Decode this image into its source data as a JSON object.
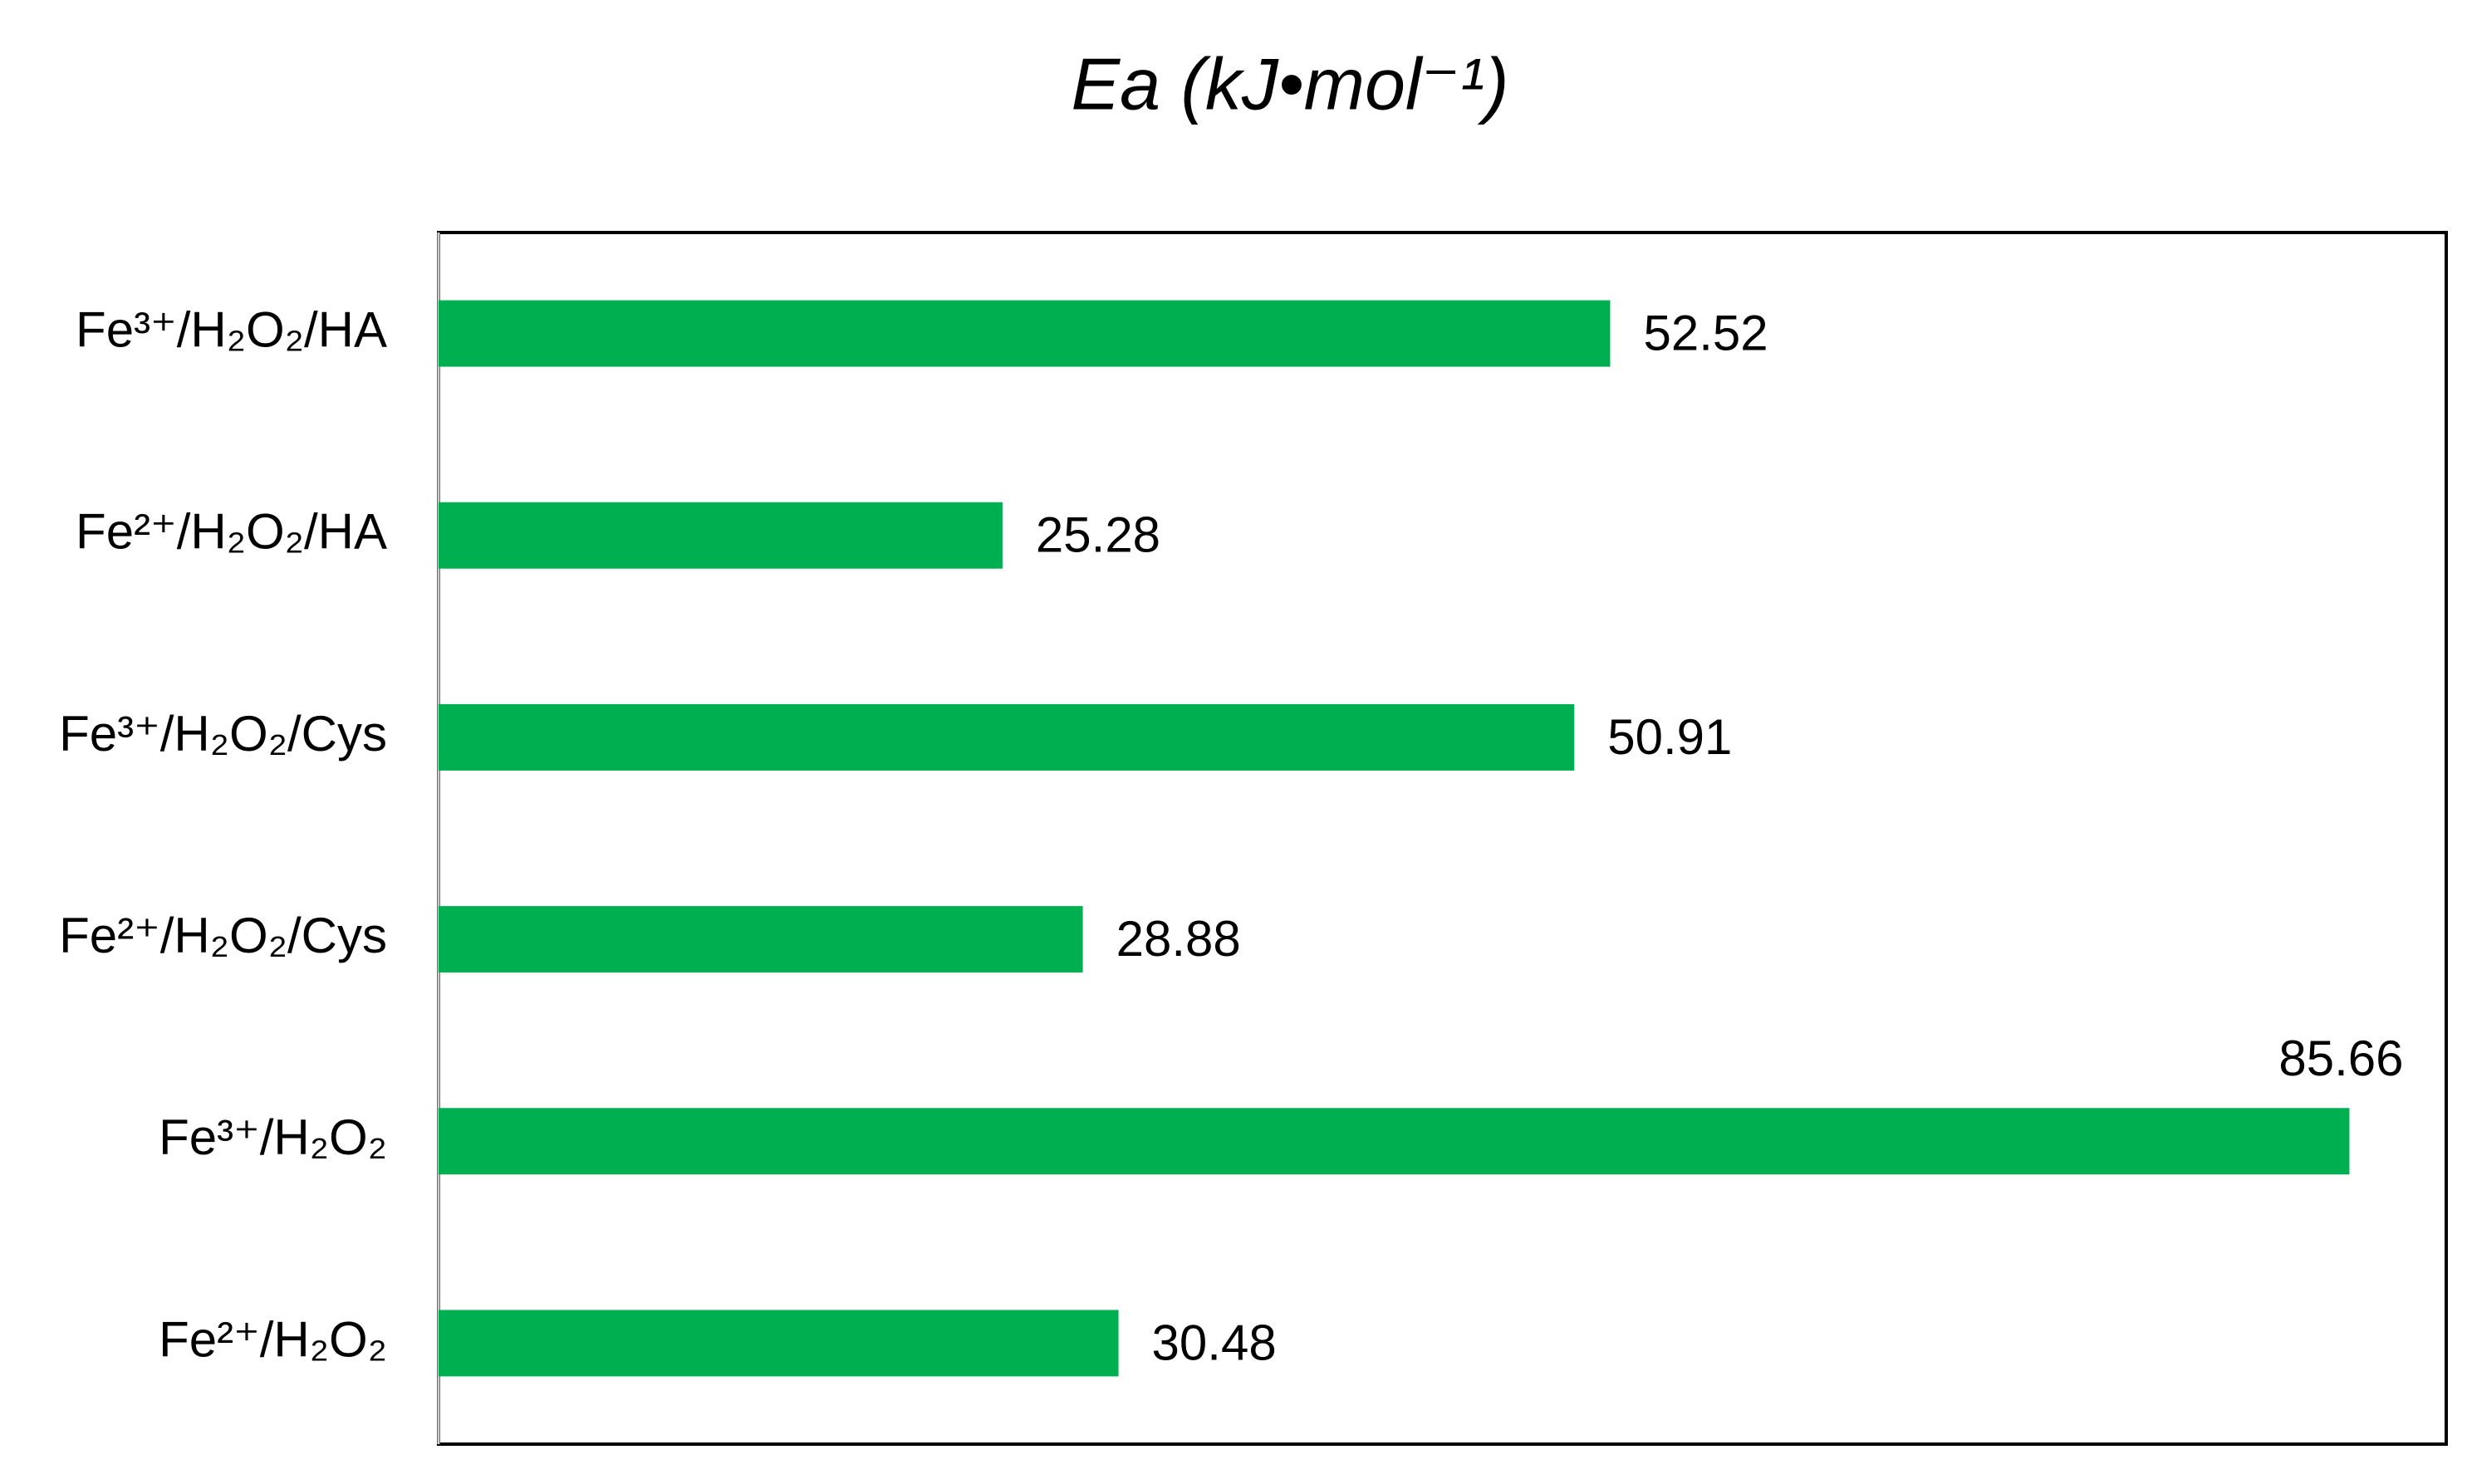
{
  "chart_data": {
    "type": "hbar",
    "title": "Ea (kJ•mol⁻¹)",
    "categories": [
      "Fe³⁺/H₂O₂/HA",
      "Fe²⁺/H₂O₂/HA",
      "Fe³⁺/H₂O₂/Cys",
      "Fe²⁺/H₂O₂/Cys",
      "Fe³⁺/H₂O₂",
      "Fe²⁺/H₂O₂"
    ],
    "values": [
      52.52,
      25.28,
      50.91,
      28.88,
      85.66,
      30.48
    ],
    "color": "#00b050",
    "xlim": [
      0,
      90
    ]
  }
}
